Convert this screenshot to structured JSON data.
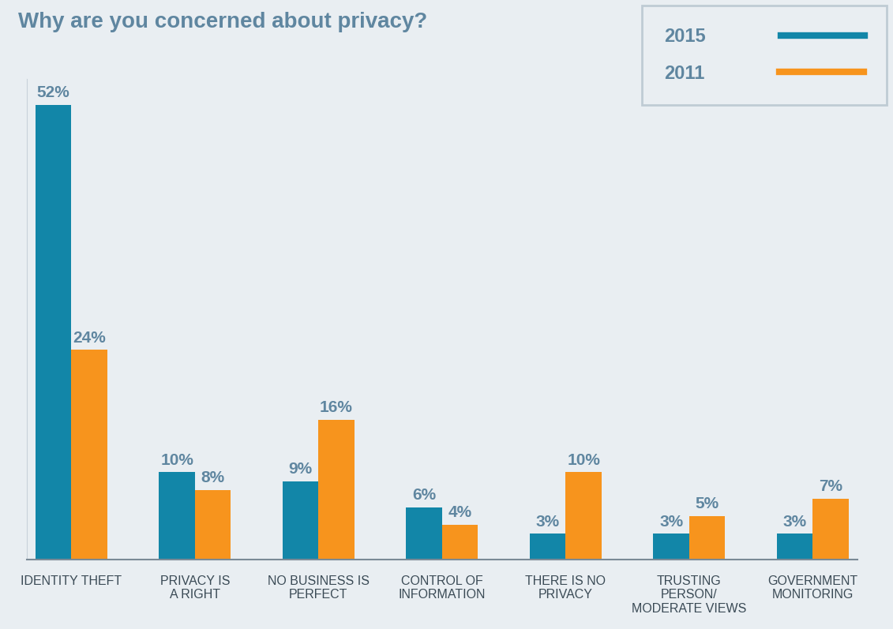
{
  "chart_data": {
    "type": "bar",
    "title": "Why are you concerned about privacy?",
    "categories": [
      "IDENTITY THEFT",
      "PRIVACY IS\nA RIGHT",
      "NO BUSINESS IS\nPERFECT",
      "CONTROL OF\nINFORMATION",
      "THERE IS NO\nPRIVACY",
      "TRUSTING\nPERSON/\nMODERATE VIEWS",
      "GOVERNMENT\nMONITORING"
    ],
    "series": [
      {
        "name": "2015",
        "color": "#1286a8",
        "values": [
          52,
          10,
          9,
          6,
          3,
          3,
          3
        ],
        "value_labels": [
          "52%",
          "10%",
          "9%",
          "6%",
          "3%",
          "3%",
          "3%"
        ]
      },
      {
        "name": "2011",
        "color": "#f7941d",
        "values": [
          24,
          8,
          16,
          4,
          10,
          5,
          7
        ],
        "value_labels": [
          "24%",
          "8%",
          "16%",
          "4%",
          "10%",
          "5%",
          "7%"
        ]
      }
    ],
    "ylim": [
      0,
      55
    ],
    "yticks": [],
    "data_labels": true,
    "legend": "upper right",
    "tick_labels": "x",
    "grid": false
  }
}
